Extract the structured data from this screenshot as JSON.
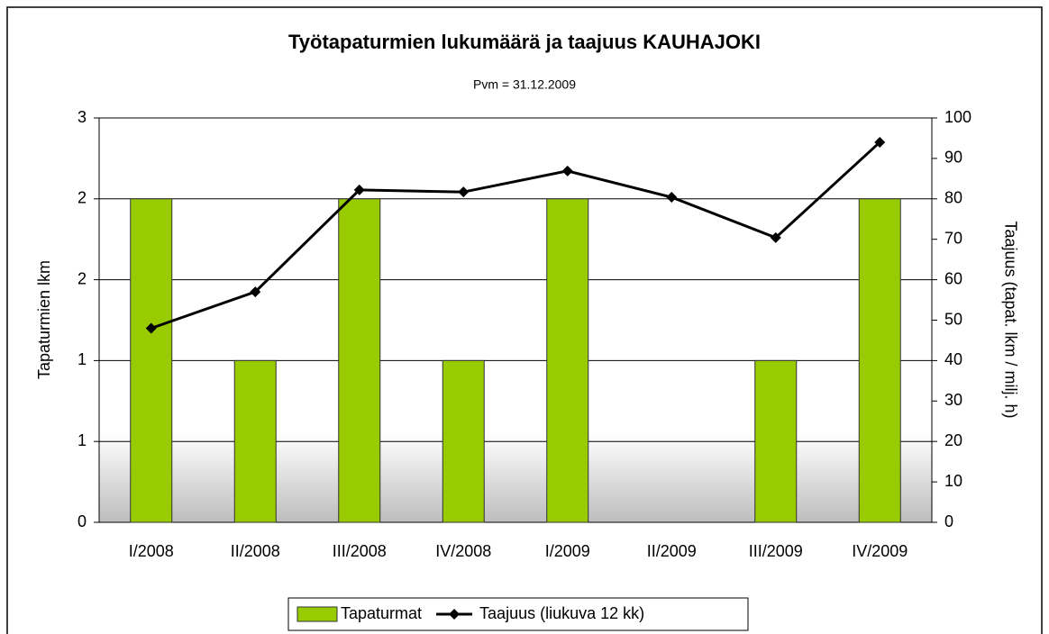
{
  "chart_data": {
    "type": "bar",
    "title": "Työtapaturmien lukumäärä ja taajuus KAUHAJOKI",
    "subtitle": "Pvm = 31.12.2009",
    "y_label": "Tapaturmien lkm",
    "y2_label": "Taajuus (tapat. lkm / milj. h)",
    "categories": [
      "I/2008",
      "II/2008",
      "III/2008",
      "IV/2008",
      "I/2009",
      "II/2009",
      "III/2009",
      "IV/2009"
    ],
    "series": [
      {
        "name": "Tapaturmat",
        "type": "bar",
        "color": "#99cc00",
        "values": [
          2,
          1,
          2,
          1,
          2,
          0,
          1,
          2
        ]
      },
      {
        "name": "Taajuus (liukuva 12 kk)",
        "type": "line",
        "axis": "y2",
        "color": "#000000",
        "values": [
          48,
          57,
          82.2,
          81.7,
          86.9,
          80.4,
          70.4,
          94
        ]
      }
    ],
    "ylim": [
      0,
      2.5
    ],
    "yticks": [
      0,
      {
        "value": 0.5,
        "label": "1"
      },
      1,
      {
        "value": 1.5,
        "label": "2"
      },
      2,
      {
        "value": 2.5,
        "label": "3"
      }
    ],
    "y2lim": [
      0,
      100
    ],
    "y2ticks": [
      0,
      10,
      20,
      30,
      40,
      50,
      60,
      70,
      80,
      90,
      100
    ],
    "grid": true,
    "legend": "bottom"
  }
}
